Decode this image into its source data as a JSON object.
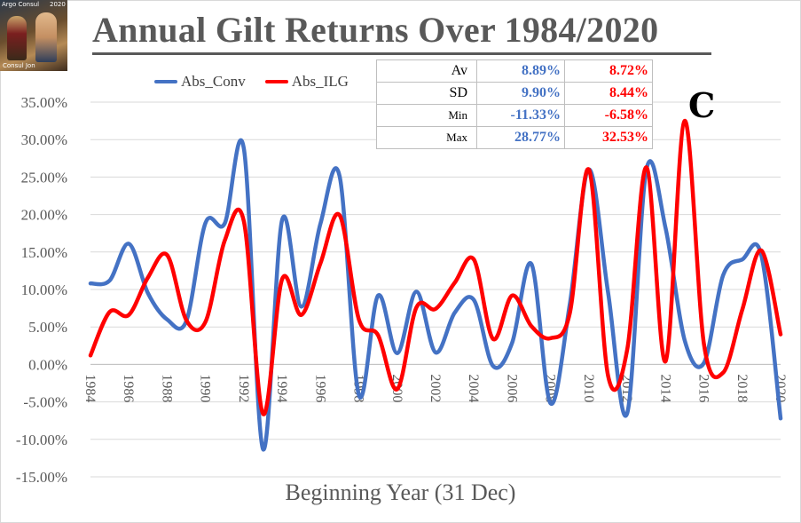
{
  "logo": {
    "top_left": "Argo Consul",
    "top_right": "2020",
    "bottom": "Consul Jon"
  },
  "title": "Annual Gilt Returns Over 1984/2020",
  "marker": "C",
  "legend": [
    {
      "name": "Abs_Conv",
      "color": "#4472c4"
    },
    {
      "name": "Abs_ILG",
      "color": "#ff0000"
    }
  ],
  "stats_table": {
    "rows": [
      {
        "label": "Av",
        "conv": "8.89%",
        "ilg": "8.72%"
      },
      {
        "label": "SD",
        "conv": "9.90%",
        "ilg": "8.44%"
      },
      {
        "label": "Min",
        "conv": "-11.33%",
        "ilg": "-6.58%"
      },
      {
        "label": "Max",
        "conv": "28.77%",
        "ilg": "32.53%"
      }
    ]
  },
  "chart_data": {
    "type": "line",
    "title": "Annual Gilt Returns Over 1984/2020",
    "xlabel": "Beginning Year (31 Dec)",
    "ylabel": "",
    "ylim": [
      -15,
      35
    ],
    "ytick_step": 5,
    "y_tick_labels": [
      "-15.00%",
      "-10.00%",
      "-5.00%",
      "0.00%",
      "5.00%",
      "10.00%",
      "15.00%",
      "20.00%",
      "25.00%",
      "30.00%",
      "35.00%"
    ],
    "x": [
      1984,
      1985,
      1986,
      1987,
      1988,
      1989,
      1990,
      1991,
      1992,
      1993,
      1994,
      1995,
      1996,
      1997,
      1998,
      1999,
      2000,
      2001,
      2002,
      2003,
      2004,
      2005,
      2006,
      2007,
      2008,
      2009,
      2010,
      2011,
      2012,
      2013,
      2014,
      2015,
      2016,
      2017,
      2018,
      2019,
      2020
    ],
    "x_tick_labels": [
      "1984",
      "1986",
      "1988",
      "1990",
      "1992",
      "1994",
      "1996",
      "1998",
      "2000",
      "2002",
      "2004",
      "2006",
      "2008",
      "2010",
      "2012",
      "2014",
      "2016",
      "2018",
      "2020"
    ],
    "grid": true,
    "legend_position": "top-left",
    "series": [
      {
        "name": "Abs_Conv",
        "color": "#4472c4",
        "values": [
          10.8,
          11.2,
          16.1,
          9.5,
          6.0,
          5.8,
          18.9,
          18.8,
          28.8,
          -11.3,
          19.3,
          7.7,
          18.8,
          25.1,
          -4.1,
          9.2,
          1.5,
          9.7,
          1.6,
          6.9,
          8.6,
          -0.2,
          2.9,
          13.4,
          -5.2,
          8.0,
          26.0,
          9.6,
          -6.5,
          26.0,
          18.2,
          3.2,
          0.2,
          11.9,
          14.0,
          14.5,
          -7.2
        ]
      },
      {
        "name": "Abs_ILG",
        "color": "#ff0000",
        "values": [
          1.2,
          7.0,
          6.6,
          11.6,
          14.6,
          5.9,
          5.7,
          16.5,
          19.1,
          -6.6,
          11.4,
          6.6,
          13.5,
          19.9,
          6.0,
          3.9,
          -3.3,
          7.6,
          7.4,
          10.9,
          14.0,
          3.4,
          9.2,
          5.1,
          3.5,
          6.8,
          26.0,
          -1.5,
          2.0,
          26.3,
          0.4,
          32.5,
          2.7,
          -1.1,
          7.3,
          15.2,
          4.0
        ]
      }
    ]
  }
}
